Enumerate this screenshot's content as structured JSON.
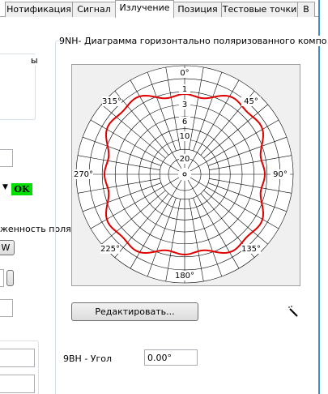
{
  "tabs": [
    "Нотификация",
    "Сигнал",
    "Излучение",
    "Позиция",
    "Тестовые точки",
    "В"
  ],
  "active_tab": "Излучение",
  "left_panel": {
    "group_fragment": "ы",
    "status": "OK",
    "field_fragment": "женность поля",
    "button_fragment": "W"
  },
  "diagram": {
    "title": "9NH- Диаграмма горизонтально поляризованного компо",
    "angle_labels": [
      "0°",
      "45°",
      "90°",
      "135°",
      "180°",
      "225°",
      "270°",
      "315°"
    ],
    "radial_labels": [
      "1",
      "3",
      "6",
      "10",
      "20"
    ]
  },
  "edit_button": "Редактировать...",
  "angle_field": {
    "label": "9BH - Угол",
    "value": "0.00°"
  }
}
